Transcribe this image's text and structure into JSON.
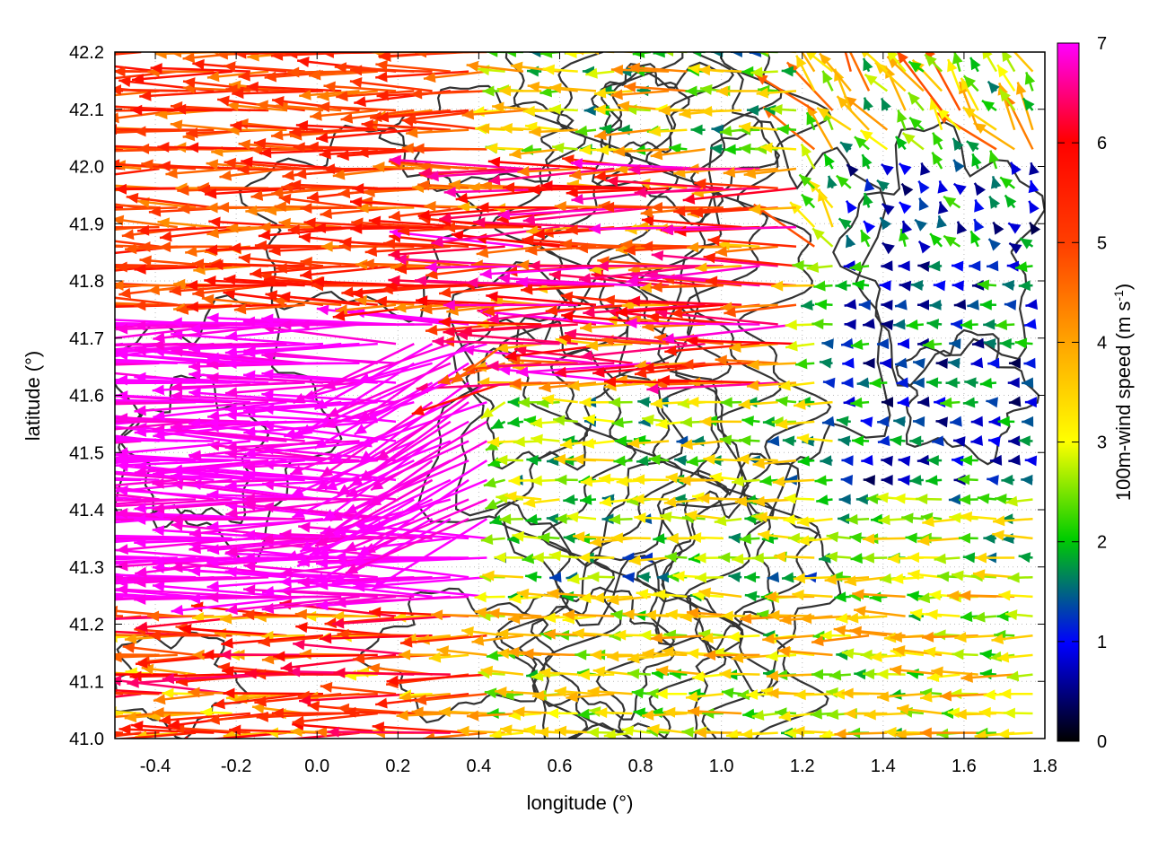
{
  "chart_data": {
    "type": "vector-field",
    "xlabel": "longitude (°)",
    "ylabel": "latitude (°)",
    "xlim": [
      -0.5,
      1.8
    ],
    "ylim": [
      41.0,
      42.2
    ],
    "x_ticks": [
      "-0.4",
      "-0.2",
      "0.0",
      "0.2",
      "0.4",
      "0.6",
      "0.8",
      "1.0",
      "1.2",
      "1.4",
      "1.6",
      "1.8"
    ],
    "y_ticks": [
      "41.0",
      "41.1",
      "41.2",
      "41.3",
      "41.4",
      "41.5",
      "41.6",
      "41.7",
      "41.8",
      "41.9",
      "42.0",
      "42.1",
      "42.2"
    ],
    "grid": true,
    "colorbar": {
      "label": "100m-wind speed (m s-1)",
      "label_main": "100m-wind speed (m s",
      "label_sup": "-1",
      "label_end": ")",
      "range": [
        0,
        7
      ],
      "ticks": [
        "0",
        "1",
        "2",
        "3",
        "4",
        "5",
        "6",
        "7"
      ],
      "colors": [
        "#000000",
        "#0000ff",
        "#00cc00",
        "#ffff00",
        "#ffa500",
        "#ff0000",
        "#ff00ff"
      ]
    },
    "wind_field": {
      "description_regions": [
        {
          "lon": [
            -0.5,
            0.45
          ],
          "lat": [
            41.25,
            41.75
          ],
          "speed": 7.0,
          "direction_deg": 188
        },
        {
          "lon": [
            -0.5,
            0.45
          ],
          "lat": [
            41.75,
            42.2
          ],
          "speed": 5.0,
          "direction_deg": 180
        },
        {
          "lon": [
            0.4,
            1.2
          ],
          "lat": [
            41.6,
            42.0
          ],
          "speed": 4.5,
          "direction_deg": 192
        },
        {
          "lon": [
            1.0,
            1.8
          ],
          "lat": [
            41.2,
            41.5
          ],
          "speed": 1.8,
          "direction_deg": 180
        },
        {
          "lon": [
            1.3,
            1.8
          ],
          "lat": [
            41.5,
            42.0
          ],
          "speed": 1.0,
          "direction_deg": 180
        },
        {
          "lon": [
            -0.5,
            1.8
          ],
          "lat": [
            41.0,
            41.2
          ],
          "speed": 3.0,
          "direction_deg": 182
        }
      ],
      "contours": "terrain elevation isolines (dark gray)"
    }
  }
}
